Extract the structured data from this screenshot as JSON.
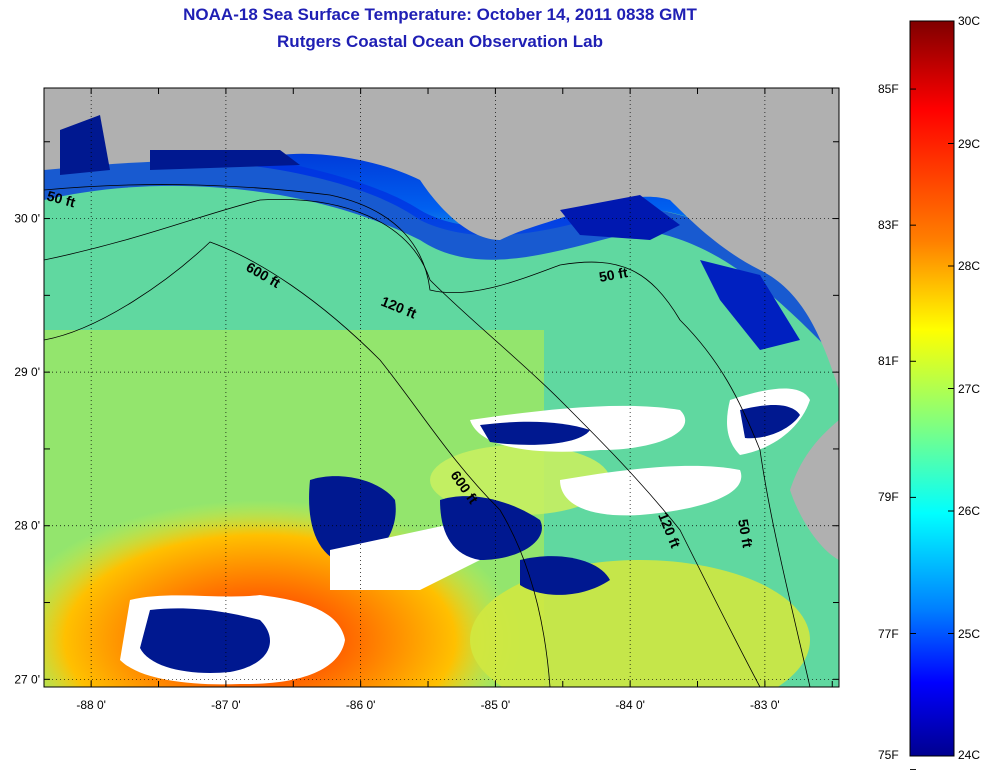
{
  "title": "NOAA-18 Sea Surface Temperature:  October 14, 2011 0838 GMT",
  "subtitle": "Rutgers Coastal Ocean Observation Lab",
  "map": {
    "lon_range": [
      -88.35,
      -82.45
    ],
    "lat_range": [
      26.95,
      30.85
    ],
    "x_ticks": [
      {
        "value": -88,
        "label": "-88 0'"
      },
      {
        "value": -87,
        "label": "-87 0'"
      },
      {
        "value": -86,
        "label": "-86 0'"
      },
      {
        "value": -85,
        "label": "-85 0'"
      },
      {
        "value": -84,
        "label": "-84 0'"
      },
      {
        "value": -83,
        "label": "-83 0'"
      }
    ],
    "y_ticks": [
      {
        "value": 30,
        "label": "30 0'"
      },
      {
        "value": 29,
        "label": "29 0'"
      },
      {
        "value": 28,
        "label": "28 0'"
      },
      {
        "value": 27,
        "label": "27 0'"
      }
    ],
    "grid": "dotted",
    "land_color": "#b0b0b0",
    "cloud_color": "#ffffff",
    "contours": [
      {
        "label": "50 ft"
      },
      {
        "label": "120 ft"
      },
      {
        "label": "600 ft"
      }
    ]
  },
  "colorbar": {
    "celsius": [
      {
        "value": 30,
        "label": "30C"
      },
      {
        "value": 29,
        "label": "29C"
      },
      {
        "value": 28,
        "label": "28C"
      },
      {
        "value": 27,
        "label": "27C"
      },
      {
        "value": 26,
        "label": "26C"
      },
      {
        "value": 25,
        "label": "25C"
      },
      {
        "value": 24,
        "label": "24C"
      }
    ],
    "fahrenheit": [
      {
        "value": 85,
        "label": "85F"
      },
      {
        "value": 83,
        "label": "83F"
      },
      {
        "value": 81,
        "label": "81F"
      },
      {
        "value": 79,
        "label": "79F"
      },
      {
        "value": 77,
        "label": "77F"
      },
      {
        "value": 75,
        "label": "75F"
      }
    ],
    "colors": [
      "#7f0000",
      "#ff0000",
      "#ff8000",
      "#ffff00",
      "#80ff80",
      "#00ffff",
      "#0080ff",
      "#0000ff",
      "#00008f"
    ]
  }
}
